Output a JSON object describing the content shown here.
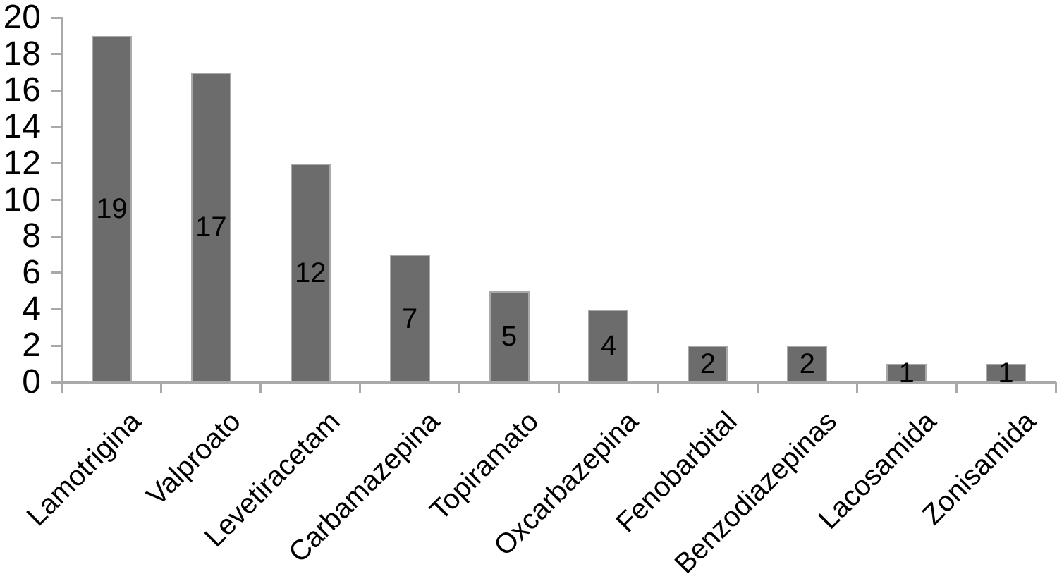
{
  "chart_data": {
    "type": "bar",
    "title": "",
    "xlabel": "",
    "ylabel": "",
    "categories": [
      "Lamotrigina",
      "Valproato",
      "Levetiracetam",
      "Carbamazepina",
      "Topiramato",
      "Oxcarbazepina",
      "Fenobarbital",
      "Benzodiazepinas",
      "Lacosamida",
      "Zonisamida"
    ],
    "values": [
      19,
      17,
      12,
      7,
      5,
      4,
      2,
      2,
      1,
      1
    ],
    "value_labels": [
      "19",
      "17",
      "12",
      "7",
      "5",
      "4",
      "2",
      "2",
      "1",
      "1"
    ],
    "ylim": [
      0,
      20
    ],
    "yticks": [
      "0",
      "2",
      "4",
      "6",
      "8",
      "10",
      "12",
      "14",
      "16",
      "18",
      "20"
    ],
    "grid": "off",
    "legend": "none",
    "bar_fill_color": "#6c6c6c",
    "bar_border_color": "#a9a9a9",
    "axis_color": "#a9a9a9",
    "text_color": "#000000"
  }
}
